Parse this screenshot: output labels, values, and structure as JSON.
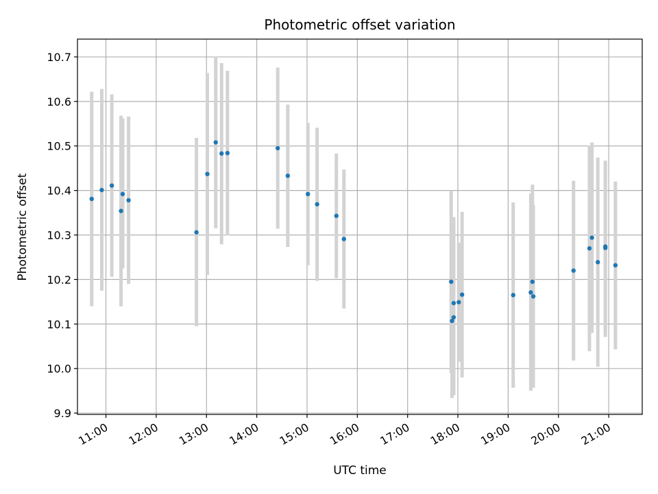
{
  "chart_data": {
    "type": "scatter",
    "title": "Photometric offset variation",
    "xlabel": "UTC time",
    "ylabel": "Photometric offset",
    "xlim": [
      "10:26",
      "21:40"
    ],
    "ylim": [
      9.897,
      10.74
    ],
    "grid": true,
    "x_ticks": [
      "11:00",
      "12:00",
      "13:00",
      "14:00",
      "15:00",
      "16:00",
      "17:00",
      "18:00",
      "19:00",
      "20:00",
      "21:00"
    ],
    "y_ticks": [
      "9.9",
      "10.0",
      "10.1",
      "10.2",
      "10.3",
      "10.4",
      "10.5",
      "10.6",
      "10.7"
    ],
    "point_color": "#1f77b4",
    "errorbar_color": "#d3d3d3",
    "points": [
      {
        "t": "10:43",
        "y": 10.381,
        "lo": 10.14,
        "hi": 10.622
      },
      {
        "t": "10:55",
        "y": 10.401,
        "lo": 10.175,
        "hi": 10.628
      },
      {
        "t": "11:07",
        "y": 10.411,
        "lo": 10.206,
        "hi": 10.616
      },
      {
        "t": "11:18",
        "y": 10.354,
        "lo": 10.14,
        "hi": 10.568
      },
      {
        "t": "11:20",
        "y": 10.392,
        "lo": 10.225,
        "hi": 10.562
      },
      {
        "t": "11:27",
        "y": 10.378,
        "lo": 10.19,
        "hi": 10.566
      },
      {
        "t": "12:48",
        "y": 10.306,
        "lo": 10.095,
        "hi": 10.518
      },
      {
        "t": "13:01",
        "y": 10.437,
        "lo": 10.21,
        "hi": 10.664
      },
      {
        "t": "13:11",
        "y": 10.508,
        "lo": 10.315,
        "hi": 10.701
      },
      {
        "t": "13:18",
        "y": 10.483,
        "lo": 10.279,
        "hi": 10.686
      },
      {
        "t": "13:25",
        "y": 10.484,
        "lo": 10.299,
        "hi": 10.669
      },
      {
        "t": "14:25",
        "y": 10.495,
        "lo": 10.314,
        "hi": 10.676
      },
      {
        "t": "14:37",
        "y": 10.433,
        "lo": 10.273,
        "hi": 10.593
      },
      {
        "t": "15:01",
        "y": 10.392,
        "lo": 10.232,
        "hi": 10.552
      },
      {
        "t": "15:12",
        "y": 10.369,
        "lo": 10.197,
        "hi": 10.541
      },
      {
        "t": "15:35",
        "y": 10.343,
        "lo": 10.203,
        "hi": 10.483
      },
      {
        "t": "15:44",
        "y": 10.291,
        "lo": 10.135,
        "hi": 10.447
      },
      {
        "t": "17:52",
        "y": 10.195,
        "lo": 9.99,
        "hi": 10.4
      },
      {
        "t": "17:53",
        "y": 10.107,
        "lo": 9.934,
        "hi": 10.28
      },
      {
        "t": "17:55",
        "y": 10.147,
        "lo": 9.954,
        "hi": 10.34
      },
      {
        "t": "17:55",
        "y": 10.115,
        "lo": 9.94,
        "hi": 10.29
      },
      {
        "t": "18:01",
        "y": 10.149,
        "lo": 10.015,
        "hi": 10.283
      },
      {
        "t": "18:05",
        "y": 10.166,
        "lo": 9.98,
        "hi": 10.352
      },
      {
        "t": "19:06",
        "y": 10.165,
        "lo": 9.957,
        "hi": 10.373
      },
      {
        "t": "19:27",
        "y": 10.171,
        "lo": 9.95,
        "hi": 10.393
      },
      {
        "t": "19:29",
        "y": 10.195,
        "lo": 9.977,
        "hi": 10.413
      },
      {
        "t": "19:30",
        "y": 10.162,
        "lo": 9.957,
        "hi": 10.367
      },
      {
        "t": "20:18",
        "y": 10.22,
        "lo": 10.018,
        "hi": 10.422
      },
      {
        "t": "20:37",
        "y": 10.27,
        "lo": 10.039,
        "hi": 10.501
      },
      {
        "t": "20:40",
        "y": 10.294,
        "lo": 10.08,
        "hi": 10.508
      },
      {
        "t": "20:47",
        "y": 10.239,
        "lo": 10.004,
        "hi": 10.474
      },
      {
        "t": "20:56",
        "y": 10.274,
        "lo": 10.081,
        "hi": 10.467
      },
      {
        "t": "20:56",
        "y": 10.271,
        "lo": 10.071,
        "hi": 10.461
      },
      {
        "t": "21:08",
        "y": 10.232,
        "lo": 10.043,
        "hi": 10.42
      }
    ]
  }
}
